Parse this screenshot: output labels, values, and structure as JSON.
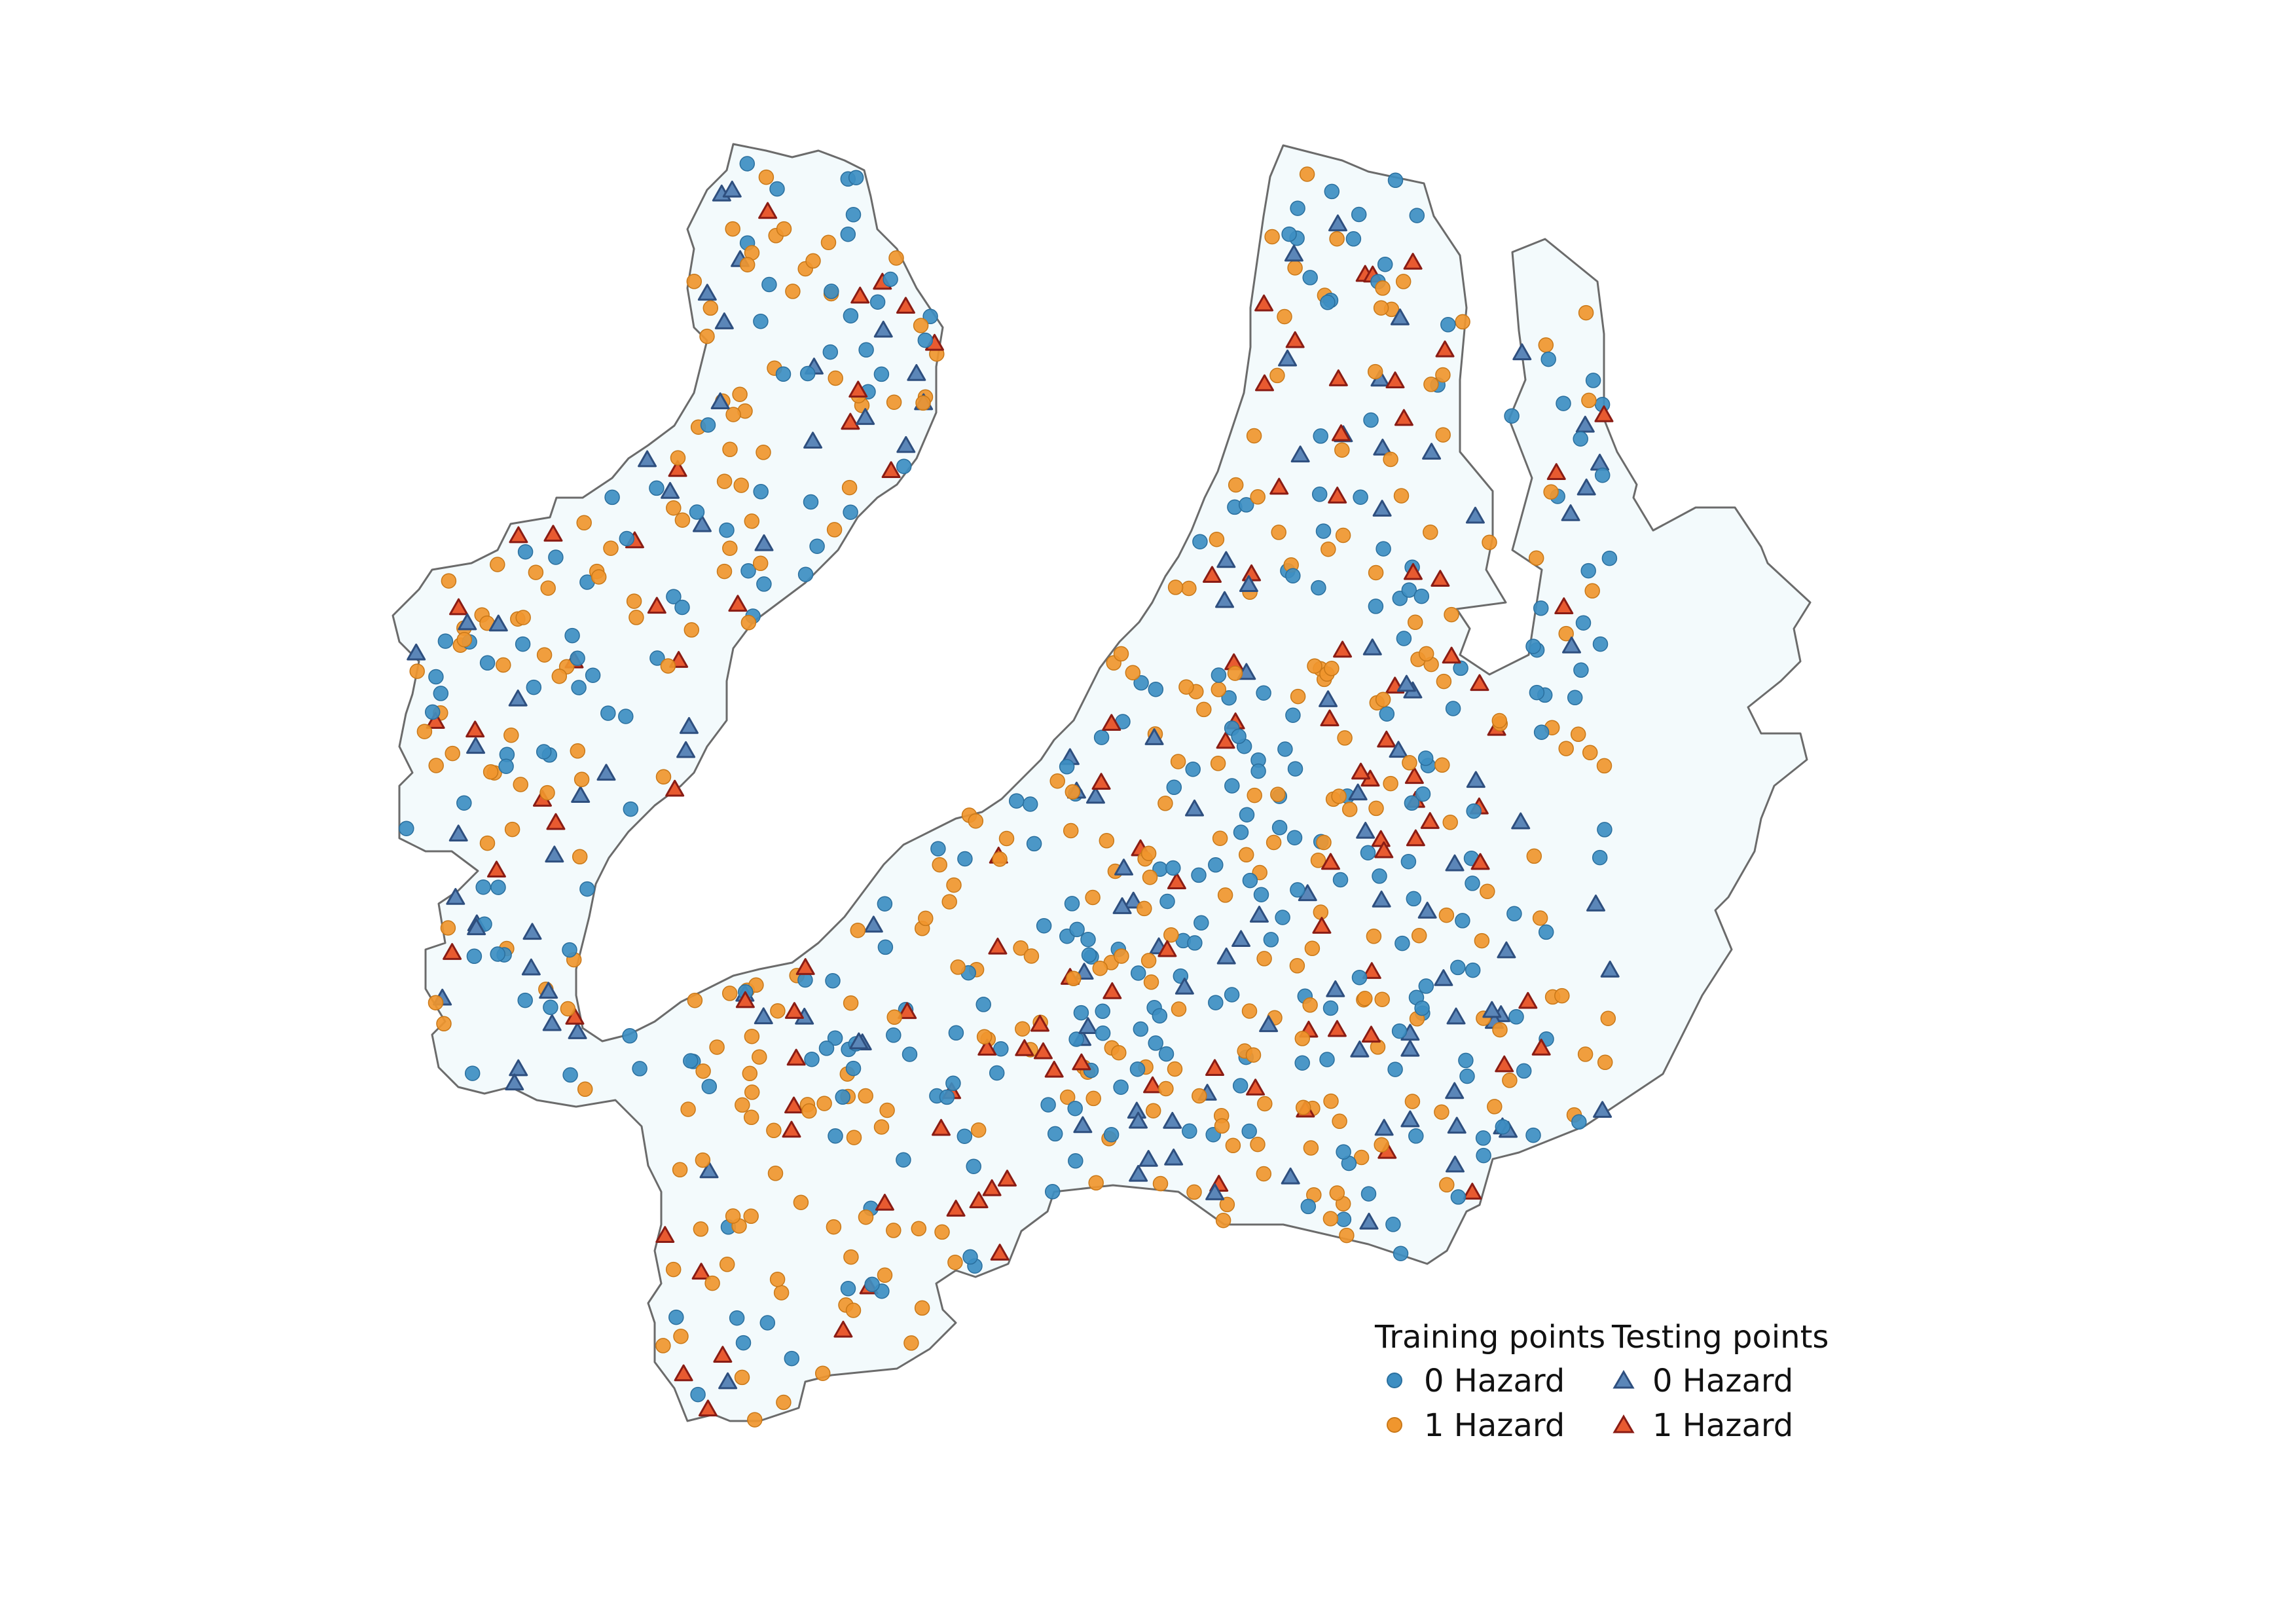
{
  "map": {
    "region_fill": "#f3fafc",
    "region_stroke": "#6b6b6b"
  },
  "legend": {
    "training_heading": "Training points",
    "testing_heading": "Testing points",
    "items": {
      "train_0": "0 Hazard",
      "train_1": "1 Hazard",
      "test_0": "0 Hazard",
      "test_1": "1 Hazard"
    }
  },
  "colors": {
    "train_0_fill": "#3d8ec2",
    "train_1_fill": "#f0962e",
    "test_0_fill": "#5b86b8",
    "test_0_stroke": "#2e4f7f",
    "test_1_fill": "#e85a30",
    "test_1_stroke": "#8a1c14"
  },
  "symbols": {
    "training": "circle",
    "testing": "triangle"
  }
}
